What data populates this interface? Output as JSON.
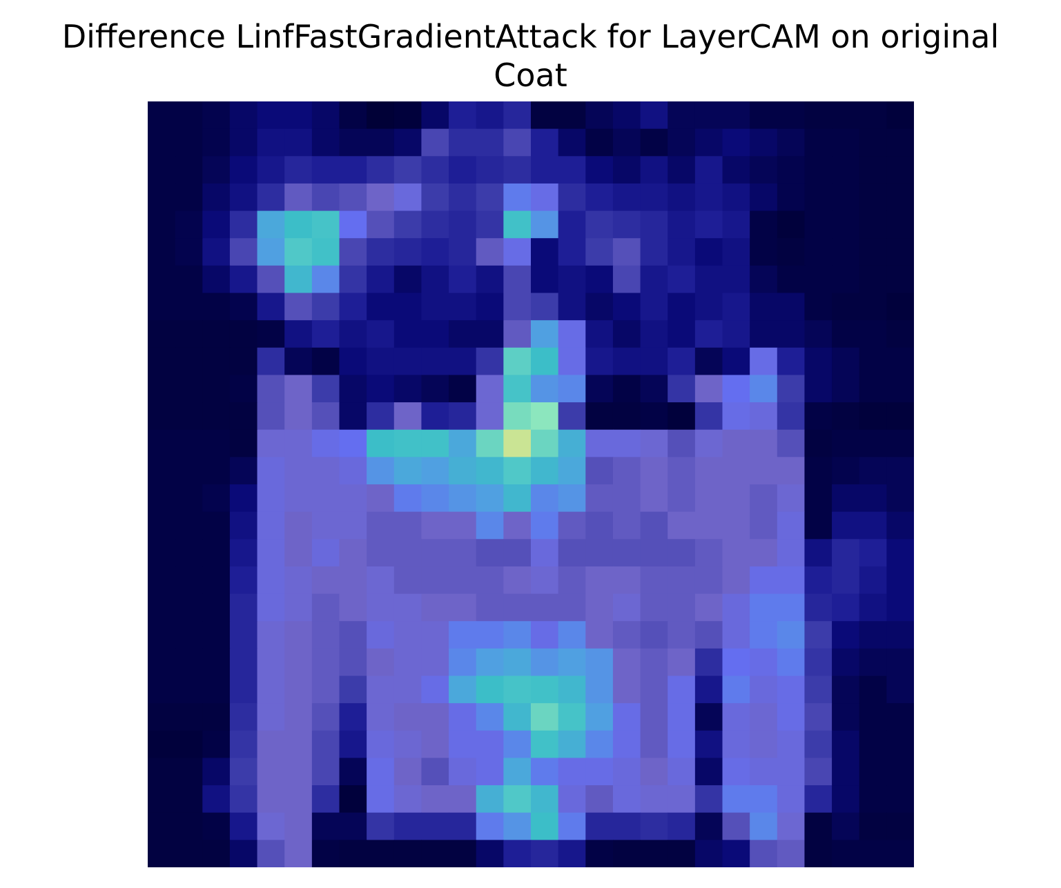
{
  "chart_data": {
    "type": "heatmap",
    "title": [
      "Difference LinfFastGradientAttack for LayerCAM on original",
      "Coat"
    ],
    "xlabel": "",
    "ylabel": "",
    "axes_visible": false,
    "grid": false,
    "legend": "none",
    "colormap": "jet-like overlay on grayscale image (dark navy = low, cyan/green/yellow = high)",
    "rows": 28,
    "cols": 28,
    "value_range": [
      0,
      1
    ],
    "z": [
      [
        0.06,
        0.06,
        0.07,
        0.1,
        0.12,
        0.12,
        0.1,
        0.06,
        0.03,
        0.04,
        0.1,
        0.18,
        0.16,
        0.2,
        0.05,
        0.05,
        0.08,
        0.1,
        0.14,
        0.08,
        0.08,
        0.08,
        0.06,
        0.06,
        0.05,
        0.05,
        0.05,
        0.04
      ],
      [
        0.06,
        0.06,
        0.07,
        0.1,
        0.14,
        0.14,
        0.1,
        0.08,
        0.08,
        0.1,
        0.28,
        0.22,
        0.22,
        0.28,
        0.18,
        0.1,
        0.06,
        0.08,
        0.06,
        0.08,
        0.1,
        0.12,
        0.1,
        0.08,
        0.06,
        0.06,
        0.05,
        0.05
      ],
      [
        0.06,
        0.06,
        0.08,
        0.12,
        0.16,
        0.2,
        0.18,
        0.18,
        0.22,
        0.26,
        0.22,
        0.18,
        0.2,
        0.22,
        0.18,
        0.18,
        0.12,
        0.1,
        0.14,
        0.1,
        0.16,
        0.1,
        0.08,
        0.07,
        0.06,
        0.06,
        0.05,
        0.05
      ],
      [
        0.06,
        0.06,
        0.1,
        0.14,
        0.22,
        0.32,
        0.28,
        0.3,
        0.34,
        0.38,
        0.26,
        0.22,
        0.26,
        0.44,
        0.4,
        0.22,
        0.18,
        0.16,
        0.16,
        0.14,
        0.16,
        0.14,
        0.1,
        0.07,
        0.06,
        0.06,
        0.05,
        0.05
      ],
      [
        0.06,
        0.07,
        0.12,
        0.22,
        0.52,
        0.58,
        0.62,
        0.42,
        0.3,
        0.26,
        0.22,
        0.2,
        0.24,
        0.6,
        0.48,
        0.18,
        0.24,
        0.22,
        0.2,
        0.16,
        0.18,
        0.16,
        0.06,
        0.04,
        0.06,
        0.06,
        0.05,
        0.05
      ],
      [
        0.06,
        0.07,
        0.14,
        0.28,
        0.5,
        0.66,
        0.6,
        0.28,
        0.22,
        0.2,
        0.18,
        0.2,
        0.32,
        0.4,
        0.12,
        0.18,
        0.26,
        0.3,
        0.2,
        0.16,
        0.12,
        0.14,
        0.06,
        0.05,
        0.06,
        0.06,
        0.05,
        0.05
      ],
      [
        0.06,
        0.06,
        0.1,
        0.16,
        0.3,
        0.56,
        0.46,
        0.24,
        0.16,
        0.1,
        0.14,
        0.18,
        0.14,
        0.28,
        0.12,
        0.14,
        0.12,
        0.28,
        0.16,
        0.18,
        0.14,
        0.14,
        0.08,
        0.06,
        0.06,
        0.06,
        0.05,
        0.05
      ],
      [
        0.06,
        0.06,
        0.06,
        0.07,
        0.16,
        0.3,
        0.26,
        0.18,
        0.12,
        0.12,
        0.14,
        0.14,
        0.12,
        0.28,
        0.26,
        0.14,
        0.1,
        0.12,
        0.16,
        0.12,
        0.14,
        0.16,
        0.1,
        0.1,
        0.06,
        0.05,
        0.05,
        0.04
      ],
      [
        0.05,
        0.05,
        0.05,
        0.05,
        0.06,
        0.14,
        0.18,
        0.14,
        0.16,
        0.12,
        0.12,
        0.1,
        0.1,
        0.32,
        0.5,
        0.4,
        0.14,
        0.1,
        0.14,
        0.12,
        0.18,
        0.16,
        0.1,
        0.1,
        0.08,
        0.06,
        0.06,
        0.05
      ],
      [
        0.05,
        0.05,
        0.05,
        0.05,
        0.22,
        0.08,
        0.06,
        0.12,
        0.14,
        0.14,
        0.14,
        0.14,
        0.24,
        0.68,
        0.58,
        0.4,
        0.16,
        0.14,
        0.14,
        0.18,
        0.08,
        0.12,
        0.4,
        0.18,
        0.1,
        0.08,
        0.06,
        0.06
      ],
      [
        0.05,
        0.05,
        0.05,
        0.06,
        0.3,
        0.34,
        0.26,
        0.1,
        0.12,
        0.1,
        0.08,
        0.06,
        0.36,
        0.62,
        0.48,
        0.46,
        0.08,
        0.06,
        0.08,
        0.24,
        0.34,
        0.42,
        0.46,
        0.26,
        0.1,
        0.08,
        0.06,
        0.06
      ],
      [
        0.05,
        0.05,
        0.05,
        0.05,
        0.3,
        0.34,
        0.3,
        0.1,
        0.22,
        0.34,
        0.18,
        0.2,
        0.36,
        0.72,
        0.76,
        0.26,
        0.05,
        0.05,
        0.06,
        0.04,
        0.24,
        0.4,
        0.38,
        0.24,
        0.06,
        0.05,
        0.04,
        0.04
      ],
      [
        0.06,
        0.06,
        0.06,
        0.05,
        0.36,
        0.36,
        0.4,
        0.42,
        0.58,
        0.6,
        0.6,
        0.52,
        0.7,
        0.86,
        0.7,
        0.54,
        0.38,
        0.38,
        0.36,
        0.3,
        0.36,
        0.34,
        0.34,
        0.3,
        0.05,
        0.06,
        0.06,
        0.06
      ],
      [
        0.06,
        0.06,
        0.06,
        0.08,
        0.38,
        0.36,
        0.36,
        0.38,
        0.48,
        0.52,
        0.5,
        0.54,
        0.56,
        0.66,
        0.56,
        0.52,
        0.3,
        0.32,
        0.34,
        0.32,
        0.34,
        0.34,
        0.34,
        0.34,
        0.06,
        0.07,
        0.08,
        0.08
      ],
      [
        0.06,
        0.06,
        0.07,
        0.12,
        0.38,
        0.36,
        0.36,
        0.36,
        0.34,
        0.44,
        0.46,
        0.48,
        0.5,
        0.56,
        0.46,
        0.48,
        0.32,
        0.32,
        0.34,
        0.32,
        0.34,
        0.34,
        0.32,
        0.36,
        0.06,
        0.1,
        0.1,
        0.08
      ],
      [
        0.06,
        0.06,
        0.06,
        0.14,
        0.38,
        0.34,
        0.36,
        0.36,
        0.32,
        0.32,
        0.34,
        0.34,
        0.46,
        0.34,
        0.44,
        0.32,
        0.3,
        0.32,
        0.3,
        0.34,
        0.34,
        0.34,
        0.32,
        0.38,
        0.06,
        0.14,
        0.14,
        0.1
      ],
      [
        0.06,
        0.06,
        0.06,
        0.16,
        0.38,
        0.34,
        0.38,
        0.34,
        0.32,
        0.32,
        0.32,
        0.32,
        0.3,
        0.3,
        0.38,
        0.3,
        0.3,
        0.3,
        0.3,
        0.3,
        0.32,
        0.34,
        0.34,
        0.38,
        0.14,
        0.2,
        0.18,
        0.12
      ],
      [
        0.06,
        0.06,
        0.06,
        0.18,
        0.38,
        0.36,
        0.34,
        0.34,
        0.36,
        0.32,
        0.32,
        0.32,
        0.32,
        0.34,
        0.36,
        0.32,
        0.34,
        0.34,
        0.32,
        0.32,
        0.32,
        0.34,
        0.4,
        0.4,
        0.18,
        0.2,
        0.16,
        0.12
      ],
      [
        0.06,
        0.06,
        0.06,
        0.2,
        0.38,
        0.36,
        0.32,
        0.34,
        0.36,
        0.36,
        0.34,
        0.34,
        0.32,
        0.32,
        0.32,
        0.32,
        0.34,
        0.36,
        0.32,
        0.32,
        0.34,
        0.38,
        0.44,
        0.44,
        0.2,
        0.18,
        0.14,
        0.12
      ],
      [
        0.06,
        0.06,
        0.06,
        0.2,
        0.36,
        0.34,
        0.32,
        0.3,
        0.38,
        0.36,
        0.36,
        0.44,
        0.44,
        0.46,
        0.4,
        0.46,
        0.34,
        0.32,
        0.3,
        0.32,
        0.3,
        0.38,
        0.44,
        0.46,
        0.26,
        0.12,
        0.1,
        0.1
      ],
      [
        0.06,
        0.06,
        0.06,
        0.2,
        0.36,
        0.34,
        0.32,
        0.3,
        0.34,
        0.36,
        0.36,
        0.46,
        0.5,
        0.52,
        0.48,
        0.5,
        0.48,
        0.34,
        0.32,
        0.34,
        0.22,
        0.42,
        0.4,
        0.44,
        0.24,
        0.1,
        0.08,
        0.08
      ],
      [
        0.06,
        0.06,
        0.06,
        0.2,
        0.36,
        0.34,
        0.32,
        0.26,
        0.36,
        0.36,
        0.4,
        0.52,
        0.58,
        0.62,
        0.6,
        0.56,
        0.48,
        0.34,
        0.32,
        0.4,
        0.16,
        0.44,
        0.38,
        0.4,
        0.26,
        0.08,
        0.06,
        0.08
      ],
      [
        0.05,
        0.05,
        0.05,
        0.22,
        0.36,
        0.34,
        0.3,
        0.18,
        0.36,
        0.34,
        0.34,
        0.4,
        0.46,
        0.56,
        0.7,
        0.62,
        0.5,
        0.4,
        0.32,
        0.4,
        0.08,
        0.38,
        0.36,
        0.4,
        0.28,
        0.08,
        0.06,
        0.06
      ],
      [
        0.04,
        0.04,
        0.06,
        0.24,
        0.34,
        0.34,
        0.28,
        0.16,
        0.38,
        0.36,
        0.34,
        0.4,
        0.4,
        0.46,
        0.6,
        0.54,
        0.46,
        0.4,
        0.32,
        0.4,
        0.14,
        0.38,
        0.36,
        0.38,
        0.26,
        0.1,
        0.06,
        0.06
      ],
      [
        0.05,
        0.05,
        0.1,
        0.26,
        0.34,
        0.34,
        0.28,
        0.08,
        0.4,
        0.34,
        0.3,
        0.38,
        0.4,
        0.52,
        0.44,
        0.4,
        0.4,
        0.38,
        0.34,
        0.38,
        0.1,
        0.4,
        0.38,
        0.38,
        0.28,
        0.1,
        0.06,
        0.06
      ],
      [
        0.05,
        0.05,
        0.14,
        0.24,
        0.34,
        0.34,
        0.22,
        0.04,
        0.4,
        0.36,
        0.34,
        0.34,
        0.54,
        0.66,
        0.56,
        0.38,
        0.32,
        0.38,
        0.36,
        0.36,
        0.24,
        0.44,
        0.44,
        0.38,
        0.2,
        0.1,
        0.06,
        0.06
      ],
      [
        0.05,
        0.05,
        0.06,
        0.16,
        0.36,
        0.34,
        0.08,
        0.08,
        0.24,
        0.2,
        0.2,
        0.2,
        0.44,
        0.48,
        0.58,
        0.44,
        0.2,
        0.2,
        0.22,
        0.2,
        0.08,
        0.3,
        0.46,
        0.36,
        0.05,
        0.08,
        0.05,
        0.05
      ],
      [
        0.05,
        0.05,
        0.05,
        0.1,
        0.3,
        0.34,
        0.06,
        0.05,
        0.05,
        0.05,
        0.05,
        0.05,
        0.1,
        0.18,
        0.2,
        0.16,
        0.06,
        0.05,
        0.05,
        0.05,
        0.1,
        0.12,
        0.3,
        0.32,
        0.05,
        0.06,
        0.06,
        0.06
      ]
    ]
  }
}
